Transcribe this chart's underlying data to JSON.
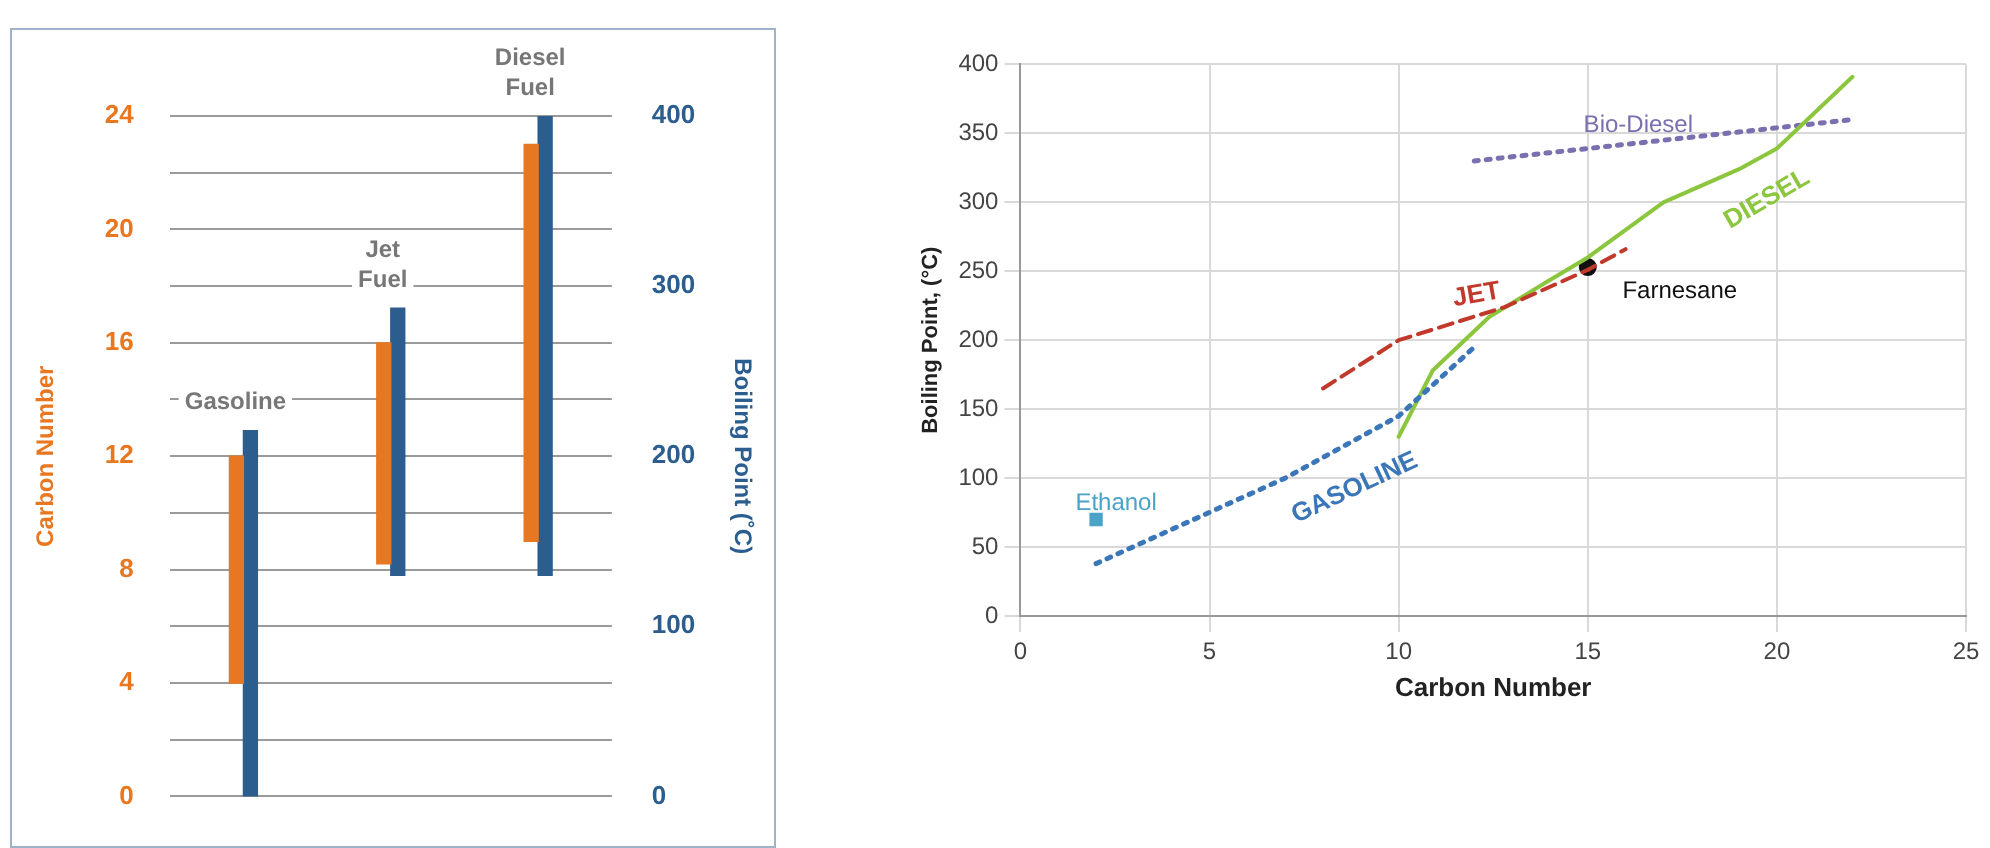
{
  "chart_data": [
    {
      "type": "bar",
      "categories": [
        "Gasoline",
        "Jet Fuel",
        "Diesel Fuel"
      ],
      "ylabel": "Carbon Number",
      "y2label": "Boiling Point (˚C)",
      "ylim": [
        0,
        24
      ],
      "yticks": [
        0,
        {
          "value": 2,
          "label": null
        },
        4,
        {
          "value": 6,
          "label": null
        },
        8,
        {
          "value": 10,
          "label": null
        },
        12,
        {
          "value": 14,
          "label": null
        },
        16,
        {
          "value": 18,
          "label": null
        },
        20,
        {
          "value": 22,
          "label": null
        },
        24
      ],
      "y2lim": [
        0,
        400
      ],
      "y2ticks": [
        0,
        100,
        200,
        300,
        400
      ],
      "grid": "y",
      "legend": false,
      "series": [
        {
          "color": "#e87722",
          "base": [
            4,
            8.2,
            9
          ],
          "values": [
            8,
            7.8,
            14
          ]
        },
        {
          "color": "#2b5d8e",
          "axis": "y2",
          "base": [
            0,
            130,
            130
          ],
          "values": [
            215,
            157,
            270
          ]
        }
      ]
    },
    {
      "type": "line",
      "xlabel": "Carbon Number",
      "ylabel": "Boiling Point, (°C)",
      "xlim": [
        0,
        25
      ],
      "xticks": [
        0,
        5,
        10,
        15,
        20,
        25
      ],
      "ylim": [
        0,
        400
      ],
      "yticks": [
        0,
        50,
        100,
        150,
        200,
        250,
        300,
        350,
        400
      ],
      "grid": true,
      "legend": false,
      "series": [
        {
          "name": "GASOLINE",
          "color": "#3a76b8",
          "line_style": "dotted",
          "marker": "none",
          "x": [
            2,
            7,
            10,
            12
          ],
          "values": [
            38,
            100,
            145,
            195
          ]
        },
        {
          "name": "JET",
          "color": "#c0392b",
          "line_style": "dashed",
          "marker": "none",
          "x": [
            8,
            10,
            12.8,
            15,
            16
          ],
          "values": [
            165,
            200,
            224,
            251,
            266
          ]
        },
        {
          "name": "DIESEL",
          "color": "#8cc63f",
          "line_style": "solid",
          "marker": "none",
          "x": [
            10,
            10.9,
            12.4,
            13.9,
            15,
            17,
            19,
            20,
            22
          ],
          "values": [
            130,
            178,
            217,
            242,
            260,
            300,
            324,
            339,
            391
          ]
        },
        {
          "name": "Bio-Diesel",
          "color": "#7b6fb0",
          "line_style": "dotted",
          "marker": "none",
          "x": [
            12,
            22
          ],
          "values": [
            330,
            360
          ]
        },
        {
          "name": "Ethanol",
          "type": "scatter",
          "color": "#4aa3c8",
          "marker": "square",
          "x": [
            2
          ],
          "values": [
            70
          ]
        },
        {
          "name": "Farnesane",
          "type": "scatter",
          "color": "#111111",
          "marker": "circle",
          "x": [
            15
          ],
          "values": [
            253
          ]
        }
      ]
    }
  ]
}
